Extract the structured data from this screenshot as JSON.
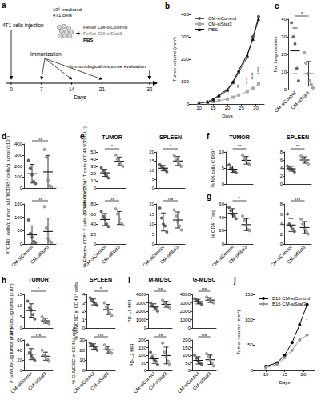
{
  "diagram": {
    "panel": "a",
    "injection": "4T1 cells injection",
    "cells": [
      "10⁶ irradiated",
      "4T1 cells"
    ],
    "plus": "+",
    "pellets": [
      {
        "text": "Pellet CM-siControl",
        "color": "#555555"
      },
      {
        "text": "Pellet CM-siStat3",
        "color": "#999999"
      },
      {
        "text": "PBS",
        "color": "#000000"
      }
    ],
    "immunization": "Immunization",
    "evaluation": "Immunological response evaluation",
    "timeline": {
      "label": "Days",
      "ticks": [
        0,
        7,
        14,
        21,
        32
      ],
      "immunization_days": [
        7,
        14,
        21
      ],
      "evaluation_day": 32
    }
  },
  "chart_data": [
    {
      "panel": "b",
      "type": "line",
      "x": [
        10,
        13,
        15,
        17,
        20,
        22,
        24,
        27,
        29,
        31
      ],
      "series": [
        {
          "name": "CM-siControl",
          "color": "#555555",
          "marker": "circle",
          "values": [
            5,
            10,
            20,
            35,
            60,
            95,
            140,
            210,
            300,
            390
          ]
        },
        {
          "name": "CM-siStat3",
          "color": "#aaaaaa",
          "marker": "square",
          "values": [
            3,
            6,
            10,
            15,
            22,
            30,
            40,
            55,
            70,
            90
          ]
        },
        {
          "name": "PBS",
          "color": "#000000",
          "marker": "triangle",
          "values": [
            5,
            10,
            20,
            40,
            65,
            100,
            150,
            220,
            290,
            380
          ]
        }
      ],
      "xlabel": "Days",
      "ylabel": "Tumor volume (mm³)",
      "xlim": [
        7,
        33
      ],
      "xticks": [
        10,
        15,
        20,
        25,
        30
      ],
      "ylim": [
        0,
        400
      ],
      "yticks": [
        0,
        100,
        200,
        300,
        400
      ],
      "legend": "upper left",
      "annotations": [
        {
          "x": 24,
          "y": 80,
          "text": "**"
        },
        {
          "x": 27,
          "y": 105,
          "text": "****"
        },
        {
          "x": 29,
          "y": 125,
          "text": "****"
        },
        {
          "x": 31,
          "y": 150,
          "text": "****"
        }
      ]
    },
    {
      "panel": "c",
      "type": "scatter",
      "ylabel": "No. lung nodules",
      "ylim": [
        0,
        40
      ],
      "yticks": [
        0,
        10,
        20,
        30,
        40
      ],
      "annotation": "*",
      "series": [
        {
          "name": "CM-siControl",
          "color": "#444444",
          "values": [
            38,
            30,
            26,
            12,
            5
          ],
          "mean": 22,
          "sd": 13
        },
        {
          "name": "CM-siStat3",
          "color": "#999999",
          "values": [
            21,
            15,
            9,
            5,
            3,
            1
          ],
          "mean": 9,
          "sd": 7
        }
      ]
    },
    {
      "panel": "d",
      "type": "scatter",
      "ylabel": "#CD45⁺ cells/g tumor (x10⁵)",
      "ylim": [
        0,
        400
      ],
      "yticks": [
        0,
        100,
        200,
        300,
        400
      ],
      "annotation": "ns",
      "tick_labels": "y",
      "series": [
        {
          "name": "CM-siControl",
          "color": "#444444",
          "values": [
            250,
            180,
            120,
            60,
            40
          ],
          "mean": 130,
          "sd": 85
        },
        {
          "name": "CM-siStat3",
          "color": "#999999",
          "values": [
            350,
            280,
            70,
            20,
            10
          ],
          "mean": 146,
          "sd": 150
        }
      ]
    },
    {
      "type": "scatter",
      "ylabel": "#TCRβ⁺ cells/g tumor (x10⁵)",
      "ylim": [
        0,
        150
      ],
      "yticks": [
        0,
        50,
        100,
        150
      ],
      "annotation": "ns",
      "series": [
        {
          "name": "CM-siControl",
          "color": "#444444",
          "values": [
            90,
            40,
            25,
            10,
            5
          ],
          "mean": 34,
          "sd": 34
        },
        {
          "name": "CM-siStat3",
          "color": "#999999",
          "values": [
            140,
            60,
            20,
            10,
            5
          ],
          "mean": 47,
          "sd": 50
        }
      ]
    },
    {
      "panel": "e",
      "type": "scatter",
      "title": "TUMOR",
      "ylabel": "% Effector CD4⁺ T cells (CD44⁺CD62L⁻)",
      "ylim": [
        0,
        50
      ],
      "yticks": [
        0,
        10,
        20,
        30,
        40,
        50
      ],
      "annotation": "*",
      "tick_labels": "y",
      "series": [
        {
          "name": "CM-siControl",
          "color": "#444444",
          "values": [
            28,
            24,
            20,
            17,
            14
          ],
          "mean": 21,
          "sd": 5
        },
        {
          "name": "CM-siStat3",
          "color": "#999999",
          "values": [
            46,
            40,
            36,
            33,
            30
          ],
          "mean": 37,
          "sd": 6
        }
      ]
    },
    {
      "type": "scatter",
      "title": "SPLEEN",
      "ylim": [
        0,
        20
      ],
      "yticks": [
        0,
        5,
        10,
        15,
        20
      ],
      "annotation": "*",
      "tick_labels": "y",
      "series": [
        {
          "name": "CM-siControl",
          "color": "#444444",
          "values": [
            13,
            12,
            11,
            10,
            9
          ],
          "mean": 11,
          "sd": 1.5
        },
        {
          "name": "CM-siStat3",
          "color": "#999999",
          "values": [
            18,
            16,
            15,
            13,
            12
          ],
          "mean": 15,
          "sd": 2.5
        }
      ]
    },
    {
      "type": "scatter",
      "ylabel": "% Effector CD8⁺ T cells (CD44⁺CD62L⁻)",
      "ylim": [
        0,
        80
      ],
      "yticks": [
        0,
        20,
        40,
        60,
        80
      ],
      "annotation": "ns",
      "series": [
        {
          "name": "CM-siControl",
          "color": "#444444",
          "values": [
            65,
            55,
            50,
            40,
            35
          ],
          "mean": 49,
          "sd": 12
        },
        {
          "name": "CM-siStat3",
          "color": "#999999",
          "values": [
            70,
            60,
            50,
            42,
            38
          ],
          "mean": 52,
          "sd": 13
        }
      ]
    },
    {
      "type": "scatter",
      "ylim": [
        0,
        20
      ],
      "yticks": [
        0,
        5,
        10,
        15,
        20
      ],
      "annotation": "ns",
      "series": [
        {
          "name": "CM-siControl",
          "color": "#444444",
          "values": [
            18,
            13,
            10,
            9,
            6
          ],
          "mean": 11,
          "sd": 4.5
        },
        {
          "name": "CM-siStat3",
          "color": "#999999",
          "values": [
            17,
            14,
            11,
            9,
            7
          ],
          "mean": 12,
          "sd": 4
        }
      ]
    },
    {
      "panel": "f",
      "type": "scatter",
      "title": "TUMOR",
      "ylabel": "% NK cells CD69⁺",
      "ylim": [
        0,
        10
      ],
      "yticks": [
        0,
        5,
        10
      ],
      "annotation": "**",
      "tick_labels": "y",
      "series": [
        {
          "name": "CM-siControl",
          "color": "#444444",
          "values": [
            6,
            5,
            4.5,
            4,
            3.5
          ],
          "mean": 4.6,
          "sd": 1
        },
        {
          "name": "CM-siStat3",
          "color": "#999999",
          "values": [
            9,
            8,
            7.5,
            6.5,
            6
          ],
          "mean": 7.4,
          "sd": 1.2
        }
      ]
    },
    {
      "type": "scatter",
      "title": "SPLEEN",
      "ylim": [
        0,
        8
      ],
      "yticks": [
        0,
        2,
        4,
        6,
        8
      ],
      "annotation": "**",
      "tick_labels": "y",
      "series": [
        {
          "name": "CM-siControl",
          "color": "#444444",
          "values": [
            4.5,
            4,
            3.8,
            3.5,
            3
          ],
          "mean": 3.8,
          "sd": 0.6
        },
        {
          "name": "CM-siStat3",
          "color": "#999999",
          "values": [
            7,
            6.5,
            6,
            5.5,
            5
          ],
          "mean": 6,
          "sd": 0.8
        }
      ]
    },
    {
      "panel": "g",
      "type": "scatter",
      "ylabel": "% CD4⁺ Treg",
      "ylim": [
        0,
        60
      ],
      "yticks": [
        0,
        20,
        40,
        60
      ],
      "annotation": "*",
      "series": [
        {
          "name": "CM-siControl",
          "color": "#444444",
          "values": [
            55,
            50,
            45,
            42,
            38
          ],
          "mean": 46,
          "sd": 7
        },
        {
          "name": "CM-siStat3",
          "color": "#999999",
          "values": [
            42,
            35,
            28,
            22,
            20
          ],
          "mean": 29,
          "sd": 9
        }
      ]
    },
    {
      "type": "scatter",
      "ylim": [
        0,
        8
      ],
      "yticks": [
        0,
        2,
        4,
        6,
        8
      ],
      "annotation": "ns",
      "series": [
        {
          "name": "CM-siControl",
          "color": "#444444",
          "values": [
            6,
            4,
            3.5,
            3,
            2.5
          ],
          "mean": 3.8,
          "sd": 1.3
        },
        {
          "name": "CM-siStat3",
          "color": "#999999",
          "values": [
            5,
            4,
            3,
            2.5,
            2
          ],
          "mean": 3.3,
          "sd": 1.2
        }
      ]
    },
    {
      "panel": "h",
      "type": "scatter",
      "title": "TUMOR",
      "ylabel": "# M-MDSC/g tumor (x10⁴)",
      "ylim": [
        0,
        15
      ],
      "yticks": [
        0,
        5,
        10,
        15
      ],
      "annotation": "*",
      "tick_labels": "y",
      "series": [
        {
          "name": "CM-siControl",
          "color": "#444444",
          "values": [
            12,
            9,
            8,
            6,
            4
          ],
          "mean": 7.8,
          "sd": 3
        },
        {
          "name": "CM-siStat3",
          "color": "#999999",
          "values": [
            5,
            3.5,
            3,
            2.5,
            2
          ],
          "mean": 3.2,
          "sd": 1.1
        }
      ]
    },
    {
      "type": "scatter",
      "title": "SPLEEN",
      "ylabel": "% M-MDSC in CD45⁺ cells",
      "ylim": [
        0,
        4
      ],
      "yticks": [
        0,
        1,
        2,
        3,
        4
      ],
      "annotation": "*",
      "tick_labels": "y",
      "series": [
        {
          "name": "CM-siControl",
          "color": "#444444",
          "values": [
            3.6,
            3.3,
            3.1,
            2.9,
            2.7
          ],
          "mean": 3.1,
          "sd": 0.35
        },
        {
          "name": "CM-siStat3",
          "color": "#999999",
          "values": [
            3,
            2.5,
            2.2,
            1.8,
            1.5
          ],
          "mean": 2.2,
          "sd": 0.6
        }
      ]
    },
    {
      "type": "scatter",
      "ylabel": "# G-MDSC/g tumor (x10⁴)",
      "ylim": [
        0,
        60
      ],
      "yticks": [
        0,
        20,
        40,
        60
      ],
      "annotation": "ns",
      "series": [
        {
          "name": "CM-siControl",
          "color": "#444444",
          "values": [
            50,
            35,
            30,
            25,
            20
          ],
          "mean": 32,
          "sd": 11
        },
        {
          "name": "CM-siStat3",
          "color": "#999999",
          "values": [
            40,
            30,
            28,
            22,
            18
          ],
          "mean": 28,
          "sd": 8
        }
      ]
    },
    {
      "type": "scatter",
      "ylabel": "% G-MDSC in CD45⁺ cells",
      "ylim": [
        0,
        30
      ],
      "yticks": [
        0,
        10,
        20,
        30
      ],
      "annotation": "ns",
      "series": [
        {
          "name": "CM-siControl",
          "color": "#444444",
          "values": [
            27,
            25,
            24,
            22,
            20
          ],
          "mean": 23.6,
          "sd": 2.6
        },
        {
          "name": "CM-siStat3",
          "color": "#999999",
          "values": [
            25,
            22,
            20,
            18,
            17
          ],
          "mean": 20.4,
          "sd": 3.2
        }
      ]
    },
    {
      "panel": "i",
      "type": "scatter",
      "title": "M-MDSC",
      "ylabel": "PD-L1 MFI",
      "ylim": [
        0,
        4000
      ],
      "yticks": [
        0,
        1000,
        2000,
        3000,
        4000
      ],
      "annotation": "ns",
      "tick_labels": "y",
      "series": [
        {
          "name": "CM-siControl",
          "color": "#444444",
          "values": [
            3000,
            2700,
            2500,
            2300,
            2000
          ],
          "mean": 2500,
          "sd": 380
        },
        {
          "name": "CM-siStat3",
          "color": "#999999",
          "values": [
            3300,
            3000,
            2800,
            2600,
            2400
          ],
          "mean": 2820,
          "sd": 350
        }
      ]
    },
    {
      "type": "scatter",
      "title": "G-MDSC",
      "ylim": [
        0,
        4000
      ],
      "yticks": [
        0,
        1000,
        2000,
        3000,
        4000
      ],
      "annotation": "ns",
      "tick_labels": "y",
      "series": [
        {
          "name": "CM-siControl",
          "color": "#444444",
          "values": [
            3500,
            3300,
            3100,
            3000,
            2800
          ],
          "mean": 3140,
          "sd": 270
        },
        {
          "name": "CM-siStat3",
          "color": "#999999",
          "values": [
            3700,
            3500,
            3300,
            3100,
            3000
          ],
          "mean": 3320,
          "sd": 290
        }
      ]
    },
    {
      "type": "scatter",
      "ylabel": "PD-L2 MFI",
      "ylim": [
        0,
        200
      ],
      "yticks": [
        0,
        50,
        100,
        150,
        200
      ],
      "annotation": "ns",
      "series": [
        {
          "name": "CM-siControl",
          "color": "#444444",
          "values": [
            120,
            90,
            70,
            60,
            40
          ],
          "mean": 76,
          "sd": 30
        },
        {
          "name": "CM-siStat3",
          "color": "#999999",
          "values": [
            180,
            120,
            90,
            60,
            40
          ],
          "mean": 98,
          "sd": 55
        }
      ]
    },
    {
      "type": "scatter",
      "ylim": [
        0,
        200
      ],
      "yticks": [
        0,
        50,
        100,
        150,
        200
      ],
      "annotation": "ns",
      "series": [
        {
          "name": "CM-siControl",
          "color": "#444444",
          "values": [
            100,
            80,
            60,
            50,
            40
          ],
          "mean": 66,
          "sd": 24
        },
        {
          "name": "CM-siStat3",
          "color": "#999999",
          "values": [
            110,
            90,
            70,
            50,
            30
          ],
          "mean": 70,
          "sd": 31
        }
      ]
    },
    {
      "panel": "j",
      "type": "line",
      "x": [
        10,
        13,
        15,
        17,
        19,
        21
      ],
      "series": [
        {
          "name": "B16 CM-siControl",
          "color": "#000000",
          "marker": "circle",
          "values": [
            8,
            15,
            30,
            55,
            90,
            130
          ]
        },
        {
          "name": "B16 CM-siStat3",
          "color": "#999999",
          "marker": "circle",
          "values": [
            5,
            12,
            25,
            40,
            60,
            70
          ]
        }
      ],
      "xlabel": "Days",
      "ylabel": "Tumor volume (mm³)",
      "xlim": [
        7,
        23
      ],
      "xticks": [
        10,
        15,
        20
      ],
      "ylim": [
        0,
        150
      ],
      "yticks": [
        0,
        50,
        100,
        150
      ],
      "legend": "upper left",
      "annotations": [
        {
          "x": 21,
          "y": 100,
          "text": "*"
        }
      ]
    }
  ]
}
